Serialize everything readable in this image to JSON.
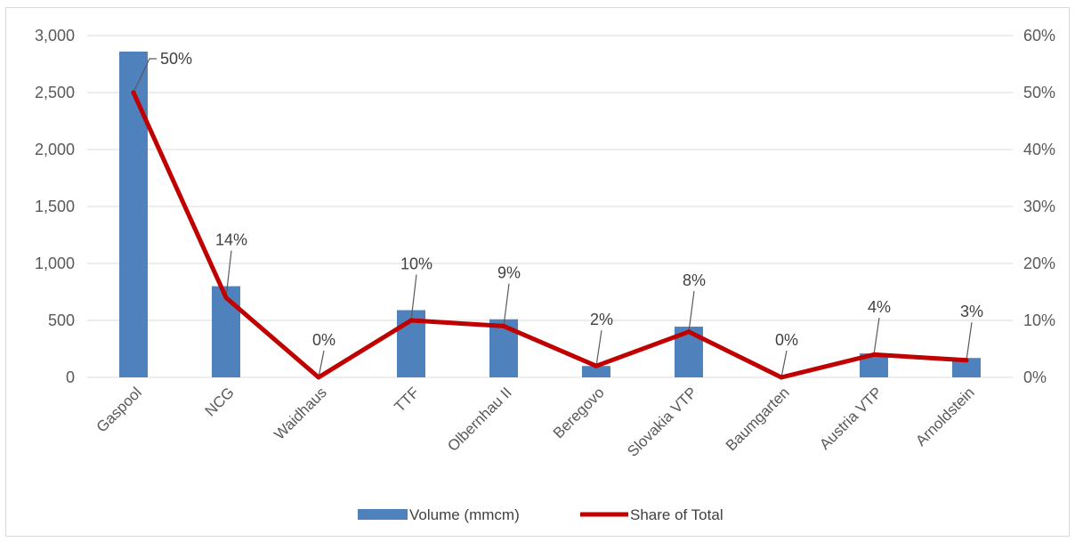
{
  "chart_data": {
    "type": "bar",
    "categories": [
      "Gaspool",
      "NCG",
      "Waidhaus",
      "TTF",
      "Olbernhau II",
      "Beregovo",
      "Slovakia VTP",
      "Baumgarten",
      "Austria VTP",
      "Arnoldstein"
    ],
    "series": [
      {
        "name": "Volume (mmcm)",
        "type": "bar",
        "axis": "left",
        "color": "#4f81bd",
        "values": [
          2860,
          800,
          0,
          590,
          510,
          100,
          445,
          0,
          210,
          170
        ]
      },
      {
        "name": "Share of Total",
        "type": "line",
        "axis": "right",
        "color": "#c00000",
        "values": [
          0.5,
          0.14,
          0.0,
          0.1,
          0.09,
          0.02,
          0.08,
          0.0,
          0.04,
          0.03
        ],
        "data_labels": [
          "50%",
          "14%",
          "0%",
          "10%",
          "9%",
          "2%",
          "8%",
          "0%",
          "4%",
          "3%"
        ]
      }
    ],
    "ylim_left": [
      0,
      3000
    ],
    "ylim_right": [
      0,
      0.6
    ],
    "left_ticks": [
      "0",
      "500",
      "1,000",
      "1,500",
      "2,000",
      "2,500",
      "3,000"
    ],
    "right_ticks": [
      "0%",
      "10%",
      "20%",
      "30%",
      "40%",
      "50%",
      "60%"
    ],
    "grid": true,
    "legend_position": "bottom"
  }
}
